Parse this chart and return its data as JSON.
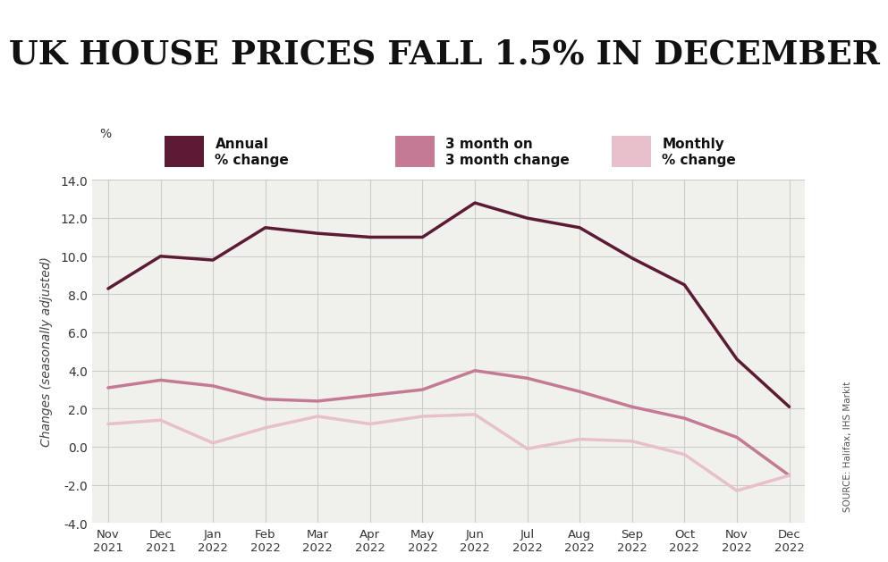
{
  "title": "UK HOUSE PRICES FALL 1.5% IN DECEMBER",
  "title_color": "#111111",
  "title_line_color": "#7b3055",
  "ylabel": "Changes (seasonally adjusted)",
  "ylabel_pct": "%",
  "source": "SOURCE: Halifax, IHS Markit",
  "background_color": "#ffffff",
  "plot_bg_color": "#f0f0ec",
  "xlabels": [
    "Nov\n2021",
    "Dec\n2021",
    "Jan\n2022",
    "Feb\n2022",
    "Mar\n2022",
    "Apr\n2022",
    "May\n2022",
    "Jun\n2022",
    "Jul\n2022",
    "Aug\n2022",
    "Sep\n2022",
    "Oct\n2022",
    "Nov\n2022",
    "Dec\n2022"
  ],
  "annual_pct": [
    8.3,
    10.0,
    9.8,
    11.5,
    11.2,
    11.0,
    11.0,
    12.8,
    12.0,
    11.5,
    9.9,
    8.5,
    4.6,
    2.1
  ],
  "three_month": [
    3.1,
    3.5,
    3.2,
    2.5,
    2.4,
    2.7,
    3.0,
    4.0,
    3.6,
    2.9,
    2.1,
    1.5,
    0.5,
    -1.5
  ],
  "monthly_pct": [
    1.2,
    1.4,
    0.2,
    1.0,
    1.6,
    1.2,
    1.6,
    1.7,
    -0.1,
    0.4,
    0.3,
    -0.4,
    -2.3,
    -1.5
  ],
  "annual_color": "#5c1a34",
  "three_month_color": "#c47a95",
  "monthly_color": "#e8c0cc",
  "ylim": [
    -4.0,
    14.0
  ],
  "yticks": [
    -4.0,
    -2.0,
    0.0,
    2.0,
    4.0,
    6.0,
    8.0,
    10.0,
    12.0,
    14.0
  ],
  "grid_color": "#cccccc",
  "line_width": 2.5,
  "legend_labels": [
    "Annual\n% change",
    "3 month on\n3 month change",
    "Monthly\n% change"
  ]
}
